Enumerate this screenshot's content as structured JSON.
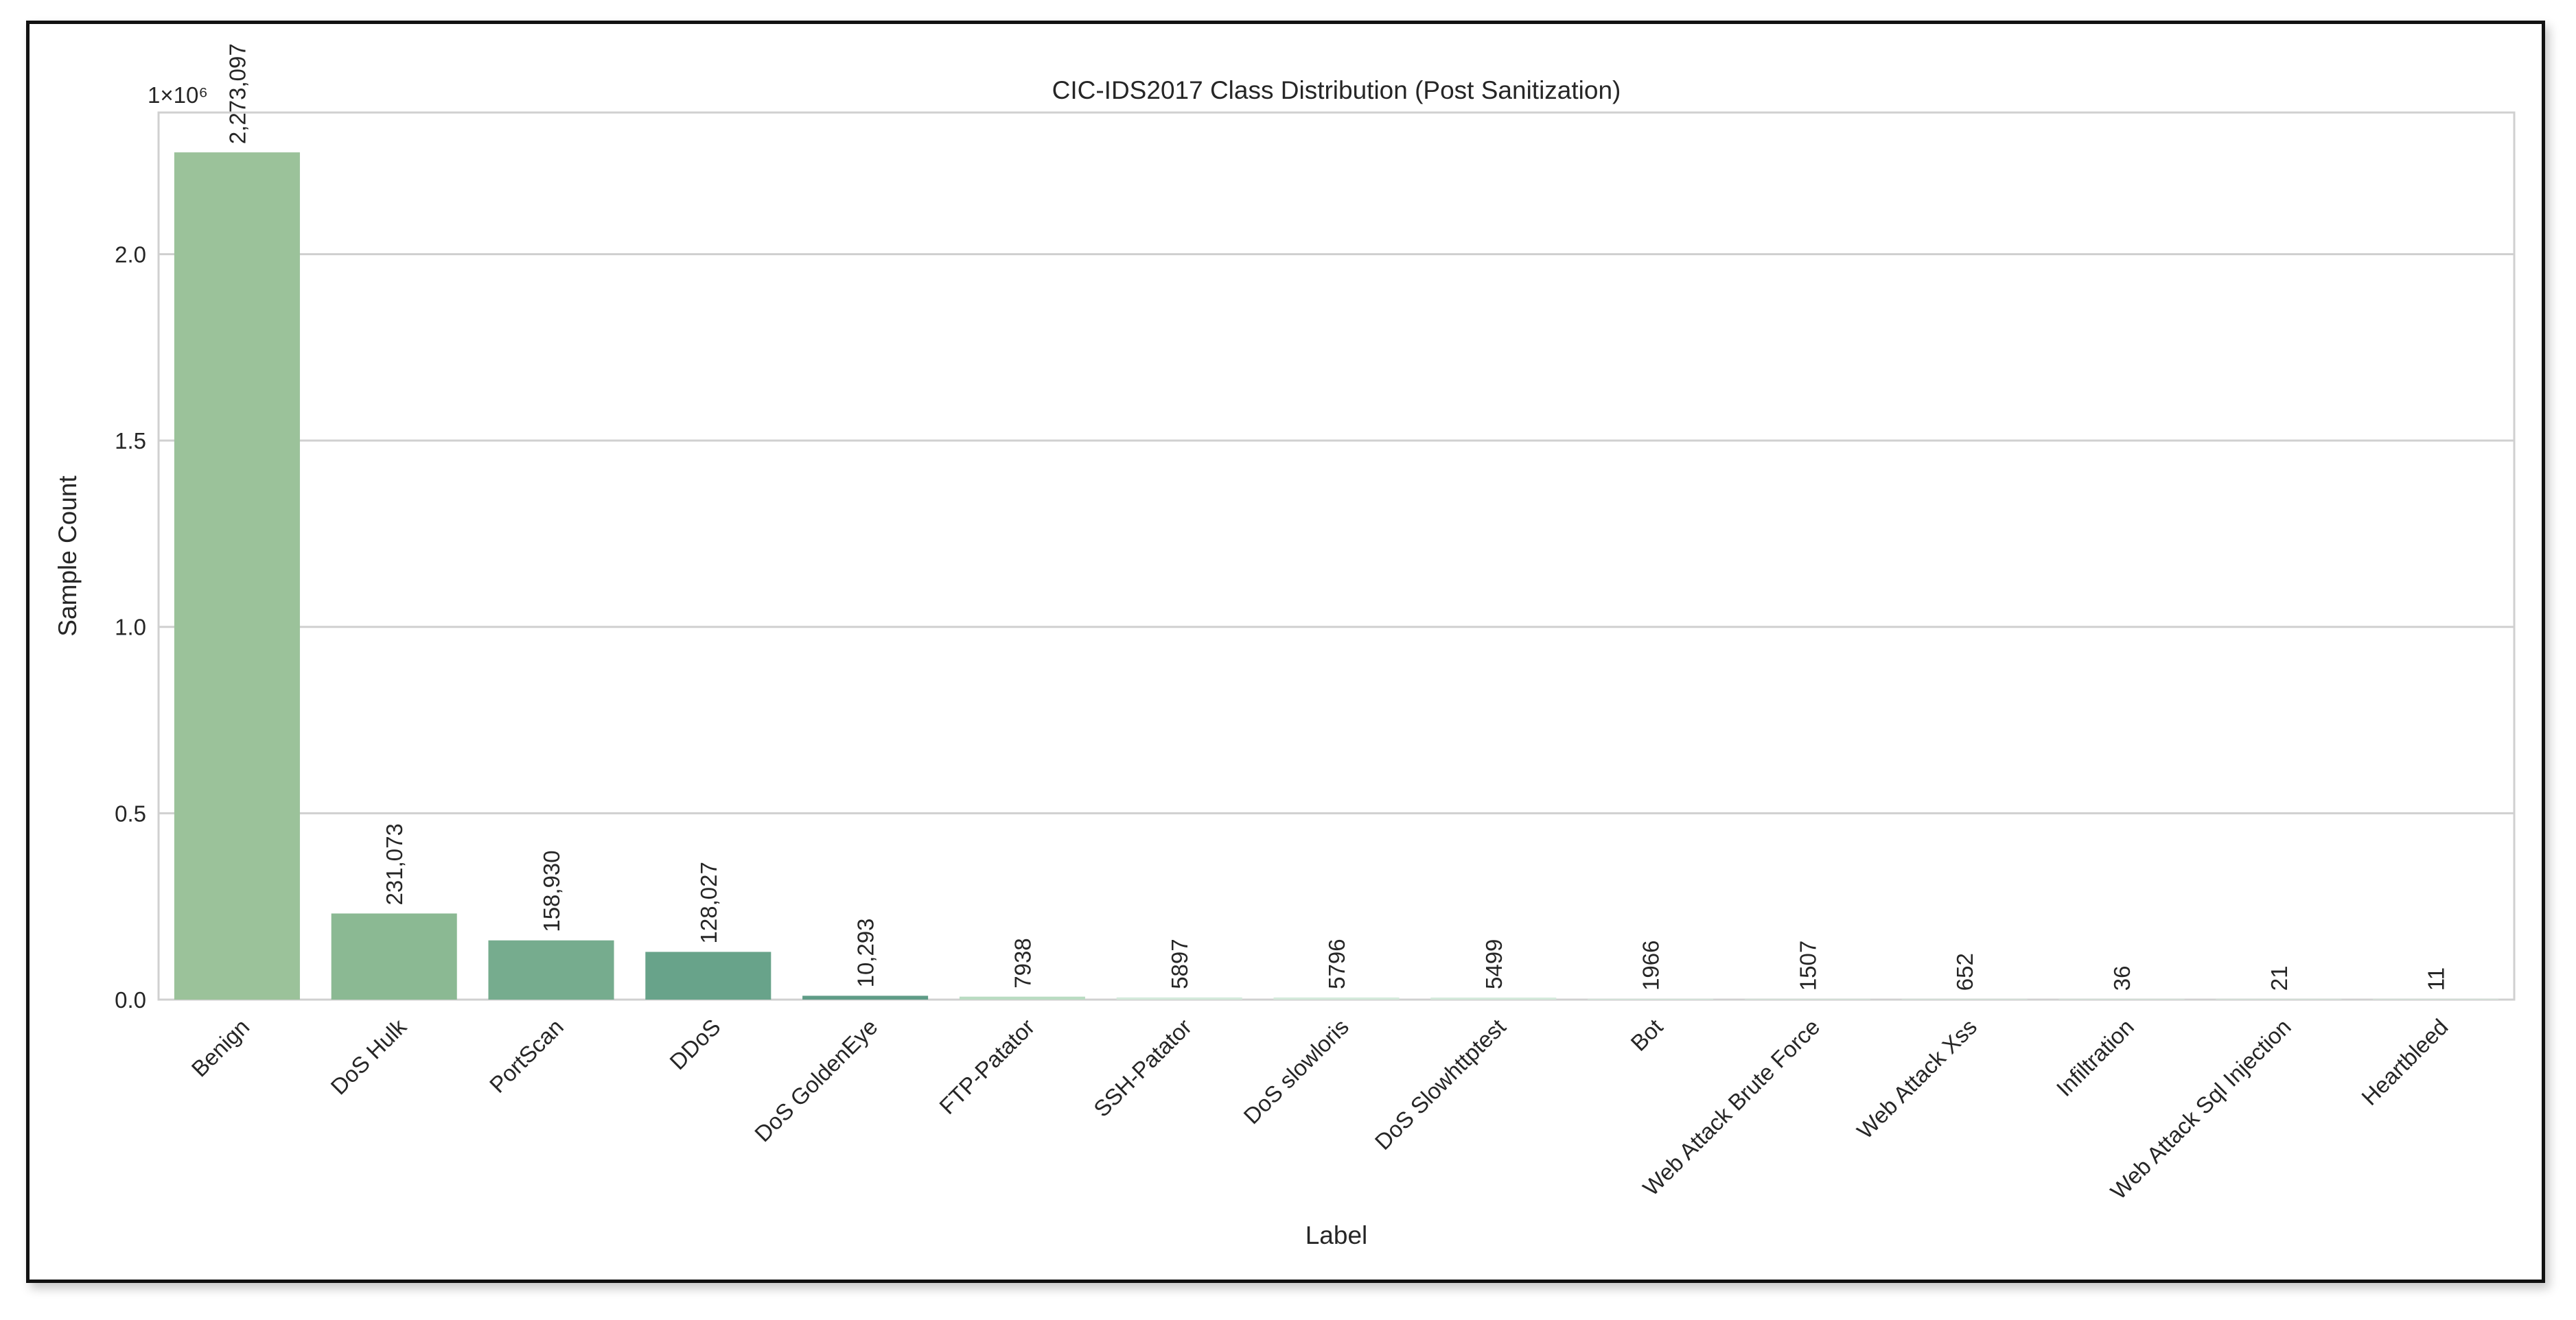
{
  "chart_data": {
    "type": "bar",
    "title": "CIC-IDS2017 Class Distribution (Post Sanitization)",
    "xlabel": "Label",
    "ylabel": "Sample Count",
    "y_offset_text": "1×10⁶",
    "y_scale": 1000000,
    "ylim": [
      0,
      2.38
    ],
    "yticks": [
      {
        "value": 0.0,
        "label": "0.0"
      },
      {
        "value": 0.5,
        "label": "0.5"
      },
      {
        "value": 1.0,
        "label": "1.0"
      },
      {
        "value": 1.5,
        "label": "1.5"
      },
      {
        "value": 2.0,
        "label": "2.0"
      }
    ],
    "grid": true,
    "categories": [
      "Benign",
      "DoS Hulk",
      "PortScan",
      "DDoS",
      "DoS GoldenEye",
      "FTP-Patator",
      "SSH-Patator",
      "DoS slowloris",
      "DoS Slowhttptest",
      "Bot",
      "Web Attack Brute Force",
      "Web Attack Xss",
      "Infiltration",
      "Web Attack Sql Injection",
      "Heartbleed"
    ],
    "values": [
      2273097,
      231073,
      158930,
      128027,
      10293,
      7938,
      5897,
      5796,
      5499,
      1966,
      1507,
      652,
      36,
      21,
      11
    ],
    "value_labels": [
      "2,273,097",
      "231,073",
      "158,930",
      "128,027",
      "10,293",
      "7938",
      "5897",
      "5796",
      "5499",
      "1966",
      "1507",
      "652",
      "36",
      "21",
      "11"
    ],
    "colors": [
      "#9bc29a",
      "#8bb993",
      "#76ac8e",
      "#68a38a",
      "#5f9c87",
      "#b9dcc2",
      "#d4eadb",
      "#d4eadb",
      "#d4eadb",
      "#d4eadb",
      "#d4eadb",
      "#d4eadb",
      "#d4eadb",
      "#d4eadb",
      "#d4eadb"
    ]
  }
}
